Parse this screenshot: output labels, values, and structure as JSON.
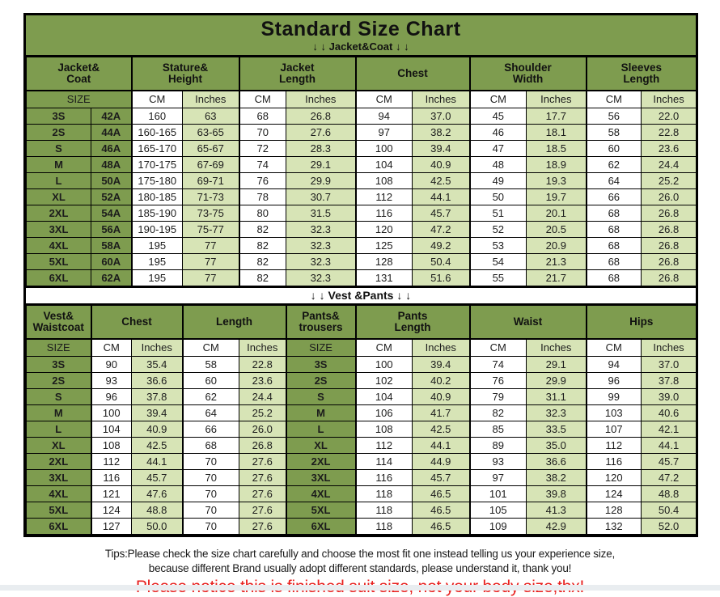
{
  "title": "Standard Size Chart",
  "colors": {
    "header_green": "#7e9c4f",
    "cell_light_green": "#d7e4b6",
    "cell_white": "#ffffff",
    "border_black": "#000000",
    "notice_red": "#e8201e"
  },
  "jacket_section": {
    "banner": "↓ ↓  Jacket&Coat ↓ ↓",
    "groups": [
      {
        "label": "Jacket&\nCoat",
        "span": 2
      },
      {
        "label": "Stature&\nHeight",
        "span": 2
      },
      {
        "label": "Jacket\nLength",
        "span": 2
      },
      {
        "label": "Chest",
        "span": 2
      },
      {
        "label": "Shoulder\nWidth",
        "span": 2
      },
      {
        "label": "Sleeves\nLength",
        "span": 2
      }
    ],
    "subheader": [
      {
        "label": "SIZE",
        "span": 2,
        "kind": "size"
      },
      {
        "label": "CM",
        "span": 1,
        "kind": "cm"
      },
      {
        "label": "Inches",
        "span": 1,
        "kind": "in"
      },
      {
        "label": "CM",
        "span": 1,
        "kind": "cm"
      },
      {
        "label": "Inches",
        "span": 1,
        "kind": "in"
      },
      {
        "label": "CM",
        "span": 1,
        "kind": "cm"
      },
      {
        "label": "Inches",
        "span": 1,
        "kind": "in"
      },
      {
        "label": "CM",
        "span": 1,
        "kind": "cm"
      },
      {
        "label": "Inches",
        "span": 1,
        "kind": "in"
      },
      {
        "label": "CM",
        "span": 1,
        "kind": "cm"
      },
      {
        "label": "Inches",
        "span": 1,
        "kind": "in"
      }
    ],
    "rows": [
      [
        "3S",
        "42A",
        "160",
        "63",
        "68",
        "26.8",
        "94",
        "37.0",
        "45",
        "17.7",
        "56",
        "22.0"
      ],
      [
        "2S",
        "44A",
        "160-165",
        "63-65",
        "70",
        "27.6",
        "97",
        "38.2",
        "46",
        "18.1",
        "58",
        "22.8"
      ],
      [
        "S",
        "46A",
        "165-170",
        "65-67",
        "72",
        "28.3",
        "100",
        "39.4",
        "47",
        "18.5",
        "60",
        "23.6"
      ],
      [
        "M",
        "48A",
        "170-175",
        "67-69",
        "74",
        "29.1",
        "104",
        "40.9",
        "48",
        "18.9",
        "62",
        "24.4"
      ],
      [
        "L",
        "50A",
        "175-180",
        "69-71",
        "76",
        "29.9",
        "108",
        "42.5",
        "49",
        "19.3",
        "64",
        "25.2"
      ],
      [
        "XL",
        "52A",
        "180-185",
        "71-73",
        "78",
        "30.7",
        "112",
        "44.1",
        "50",
        "19.7",
        "66",
        "26.0"
      ],
      [
        "2XL",
        "54A",
        "185-190",
        "73-75",
        "80",
        "31.5",
        "116",
        "45.7",
        "51",
        "20.1",
        "68",
        "26.8"
      ],
      [
        "3XL",
        "56A",
        "190-195",
        "75-77",
        "82",
        "32.3",
        "120",
        "47.2",
        "52",
        "20.5",
        "68",
        "26.8"
      ],
      [
        "4XL",
        "58A",
        "195",
        "77",
        "82",
        "32.3",
        "125",
        "49.2",
        "53",
        "20.9",
        "68",
        "26.8"
      ],
      [
        "5XL",
        "60A",
        "195",
        "77",
        "82",
        "32.3",
        "128",
        "50.4",
        "54",
        "21.3",
        "68",
        "26.8"
      ],
      [
        "6XL",
        "62A",
        "195",
        "77",
        "82",
        "32.3",
        "131",
        "51.6",
        "55",
        "21.7",
        "68",
        "26.8"
      ]
    ]
  },
  "vest_section": {
    "banner": "↓ ↓  Vest &Pants ↓ ↓",
    "groups": [
      {
        "label": "Vest&\nWaistcoat",
        "span": 1
      },
      {
        "label": "Chest",
        "span": 2
      },
      {
        "label": "Length",
        "span": 2
      },
      {
        "label": "Pants&\ntrousers",
        "span": 1
      },
      {
        "label": "Pants\nLength",
        "span": 2
      },
      {
        "label": "Waist",
        "span": 2
      },
      {
        "label": "Hips",
        "span": 2
      }
    ],
    "subheader": [
      {
        "label": "SIZE",
        "span": 1,
        "kind": "size"
      },
      {
        "label": "CM",
        "span": 1,
        "kind": "cm"
      },
      {
        "label": "Inches",
        "span": 1,
        "kind": "in"
      },
      {
        "label": "CM",
        "span": 1,
        "kind": "cm"
      },
      {
        "label": "Inches",
        "span": 1,
        "kind": "in"
      },
      {
        "label": "SIZE",
        "span": 1,
        "kind": "size"
      },
      {
        "label": "CM",
        "span": 1,
        "kind": "cm"
      },
      {
        "label": "Inches",
        "span": 1,
        "kind": "in"
      },
      {
        "label": "CM",
        "span": 1,
        "kind": "cm"
      },
      {
        "label": "Inches",
        "span": 1,
        "kind": "in"
      },
      {
        "label": "CM",
        "span": 1,
        "kind": "cm"
      },
      {
        "label": "Inches",
        "span": 1,
        "kind": "in"
      }
    ],
    "rows": [
      [
        "3S",
        "90",
        "35.4",
        "58",
        "22.8",
        "3S",
        "100",
        "39.4",
        "74",
        "29.1",
        "94",
        "37.0"
      ],
      [
        "2S",
        "93",
        "36.6",
        "60",
        "23.6",
        "2S",
        "102",
        "40.2",
        "76",
        "29.9",
        "96",
        "37.8"
      ],
      [
        "S",
        "96",
        "37.8",
        "62",
        "24.4",
        "S",
        "104",
        "40.9",
        "79",
        "31.1",
        "99",
        "39.0"
      ],
      [
        "M",
        "100",
        "39.4",
        "64",
        "25.2",
        "M",
        "106",
        "41.7",
        "82",
        "32.3",
        "103",
        "40.6"
      ],
      [
        "L",
        "104",
        "40.9",
        "66",
        "26.0",
        "L",
        "108",
        "42.5",
        "85",
        "33.5",
        "107",
        "42.1"
      ],
      [
        "XL",
        "108",
        "42.5",
        "68",
        "26.8",
        "XL",
        "112",
        "44.1",
        "89",
        "35.0",
        "112",
        "44.1"
      ],
      [
        "2XL",
        "112",
        "44.1",
        "70",
        "27.6",
        "2XL",
        "114",
        "44.9",
        "93",
        "36.6",
        "116",
        "45.7"
      ],
      [
        "3XL",
        "116",
        "45.7",
        "70",
        "27.6",
        "3XL",
        "116",
        "45.7",
        "97",
        "38.2",
        "120",
        "47.2"
      ],
      [
        "4XL",
        "121",
        "47.6",
        "70",
        "27.6",
        "4XL",
        "118",
        "46.5",
        "101",
        "39.8",
        "124",
        "48.8"
      ],
      [
        "5XL",
        "124",
        "48.8",
        "70",
        "27.6",
        "5XL",
        "118",
        "46.5",
        "105",
        "41.3",
        "128",
        "50.4"
      ],
      [
        "6XL",
        "127",
        "50.0",
        "70",
        "27.6",
        "6XL",
        "118",
        "46.5",
        "109",
        "42.9",
        "132",
        "52.0"
      ]
    ]
  },
  "footer": {
    "tips_line1": "Tips:Please check the size chart carefully and choose the most fit one instead telling us your experience size,",
    "tips_line2": "because different Brand usually adopt different standards, please understand it, thank you!",
    "notice": "Please notice this is finished suit size, not your body size,thx!"
  }
}
